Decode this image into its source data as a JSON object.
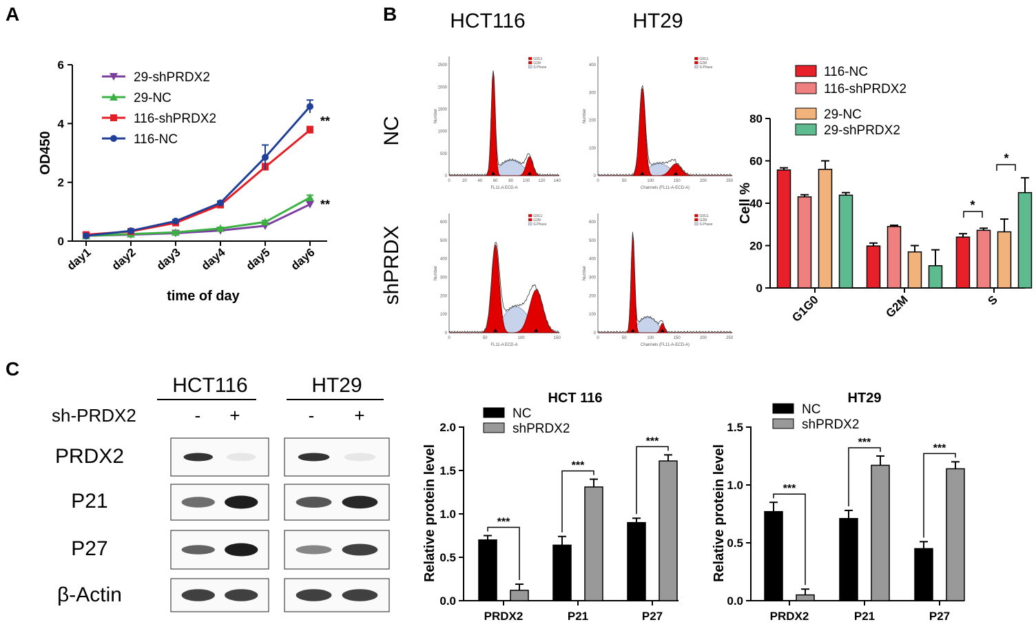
{
  "panels": {
    "a": "A",
    "b": "B",
    "c": "C"
  },
  "chart_data": [
    {
      "id": "growth",
      "type": "line",
      "xlabel": "time of day",
      "ylabel": "OD450",
      "categories": [
        "day1",
        "day2",
        "day3",
        "day4",
        "day5",
        "day6"
      ],
      "ylim": [
        0,
        6
      ],
      "yticks": [
        0,
        2,
        4,
        6
      ],
      "series": [
        {
          "name": "29-shPRDX2",
          "color": "#7b3fa0",
          "marker": "triangle-down",
          "values": [
            0.18,
            0.22,
            0.27,
            0.36,
            0.52,
            1.25
          ],
          "errors": [
            0.03,
            0.03,
            0.03,
            0.04,
            0.05,
            0.08
          ]
        },
        {
          "name": "29-NC",
          "color": "#3cb043",
          "marker": "triangle-up",
          "values": [
            0.18,
            0.24,
            0.3,
            0.43,
            0.65,
            1.48
          ],
          "errors": [
            0.03,
            0.03,
            0.03,
            0.04,
            0.05,
            0.08
          ]
        },
        {
          "name": "116-shPRDX2",
          "color": "#e31e24",
          "marker": "square",
          "values": [
            0.22,
            0.33,
            0.62,
            1.23,
            2.52,
            3.78
          ],
          "errors": [
            0.03,
            0.04,
            0.05,
            0.06,
            0.12,
            0.12
          ]
        },
        {
          "name": "116-NC",
          "color": "#1f3f99",
          "marker": "circle",
          "values": [
            0.18,
            0.35,
            0.68,
            1.3,
            2.85,
            4.58
          ],
          "errors": [
            0.03,
            0.04,
            0.05,
            0.06,
            0.42,
            0.22
          ]
        }
      ],
      "annotations": [
        "**",
        "**"
      ]
    },
    {
      "id": "cellcycle",
      "type": "bar",
      "ylabel": "Cell %",
      "categories": [
        "G1G0",
        "G2M",
        "S"
      ],
      "ylim": [
        0,
        80
      ],
      "yticks": [
        0,
        20,
        40,
        60,
        80
      ],
      "series": [
        {
          "name": "116-NC",
          "color": "#e8202a",
          "values": [
            55.7,
            19.8,
            24.0
          ],
          "errors": [
            1.0,
            1.4,
            1.6
          ]
        },
        {
          "name": "116-shPRDX2",
          "color": "#f08080",
          "values": [
            43.0,
            29.0,
            27.2
          ],
          "errors": [
            1.0,
            0.6,
            1.0
          ]
        },
        {
          "name": "29-NC",
          "color": "#f2b27c",
          "values": [
            56.0,
            17.0,
            26.5
          ],
          "errors": [
            4.0,
            3.0,
            6.0
          ]
        },
        {
          "name": "29-shPRDX2",
          "color": "#5dbb8f",
          "values": [
            43.8,
            10.5,
            45.0
          ],
          "errors": [
            1.2,
            7.5,
            7.0
          ]
        }
      ],
      "annotations": [
        "*",
        "*"
      ]
    },
    {
      "id": "hct116-protein",
      "type": "bar",
      "title": "HCT 116",
      "ylabel": "Relative protein level",
      "categories": [
        "PRDX2",
        "P21",
        "P27"
      ],
      "ylim": [
        0,
        2.0
      ],
      "yticks": [
        0.0,
        0.5,
        1.0,
        1.5,
        2.0
      ],
      "series": [
        {
          "name": "NC",
          "color": "#000000",
          "values": [
            0.7,
            0.64,
            0.9
          ],
          "errors": [
            0.05,
            0.1,
            0.05
          ]
        },
        {
          "name": "shPRDX2",
          "color": "#999999",
          "values": [
            0.12,
            1.31,
            1.61
          ],
          "errors": [
            0.07,
            0.09,
            0.07
          ]
        }
      ],
      "annotations": [
        "***",
        "***",
        "***"
      ]
    },
    {
      "id": "ht29-protein",
      "type": "bar",
      "title": "HT29",
      "ylabel": "Relative protein level",
      "categories": [
        "PRDX2",
        "P21",
        "P27"
      ],
      "ylim": [
        0,
        1.5
      ],
      "yticks": [
        0.0,
        0.5,
        1.0,
        1.5
      ],
      "series": [
        {
          "name": "NC",
          "color": "#000000",
          "values": [
            0.77,
            0.71,
            0.45
          ],
          "errors": [
            0.08,
            0.07,
            0.06
          ]
        },
        {
          "name": "shPRDX2",
          "color": "#999999",
          "values": [
            0.05,
            1.17,
            1.14
          ],
          "errors": [
            0.05,
            0.08,
            0.06
          ]
        }
      ],
      "annotations": [
        "***",
        "***",
        "***"
      ]
    }
  ],
  "flow": {
    "col_labels": [
      "HCT116",
      "HT29"
    ],
    "row_labels": [
      "NC",
      "shPRDX"
    ],
    "legend_entries": [
      "G0G1",
      "G2M",
      "S-Phase"
    ],
    "y_axis_name": "Number",
    "x_axis_names": [
      "FL11-A ECD-A",
      "Channels (FL11-A-ECD-A)",
      "FL11-A ECD-A",
      "Channels (FL11-A-ECD-A)"
    ],
    "ticks": {
      "hct_nc_y": [
        "0",
        "500",
        "1000",
        "1500",
        "2000",
        "2500"
      ],
      "hct_nc_x": [
        "0",
        "20",
        "40",
        "60",
        "80",
        "100",
        "120",
        "140"
      ],
      "ht_nc_y": [
        "0",
        "100",
        "200",
        "300",
        "400"
      ],
      "ht_nc_x": [
        "0",
        "50",
        "100",
        "150",
        "200",
        "250"
      ],
      "hct_sh_y": [
        "0",
        "100",
        "200",
        "300",
        "400",
        "500",
        "600"
      ],
      "hct_sh_x": [
        "0",
        "50",
        "100",
        "150"
      ],
      "ht_sh_y": [
        "0",
        "100",
        "200",
        "300",
        "400",
        "500",
        "600"
      ],
      "ht_sh_x": [
        "0",
        "50",
        "100",
        "150",
        "200",
        "250"
      ]
    }
  },
  "blot": {
    "col_titles": [
      "HCT116",
      "HT29"
    ],
    "row_header": "sh-PRDX2",
    "lane_marks": [
      "-",
      "+",
      "-",
      "+"
    ],
    "proteins": [
      "PRDX2",
      "P21",
      "P27",
      "β-Actin"
    ]
  }
}
